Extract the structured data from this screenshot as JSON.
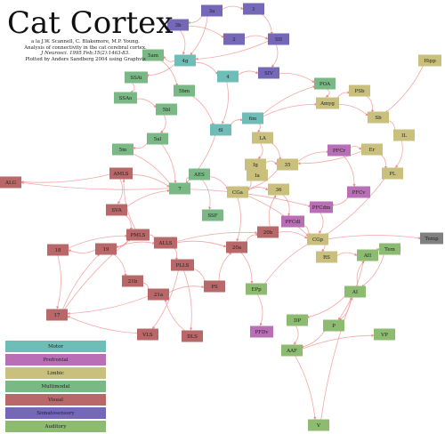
{
  "header": {
    "title": "Cat Cortex",
    "caption": [
      "a la J.W. Scannell, C. Blakemore, M.P. Young.",
      "Analysis of connectivity in the cat cerebral cortex.",
      "J Neurosci. 1995 Feb;15(2):1463-83.",
      "Plotted by Anders Sandberg 2004 using Graphviz"
    ]
  },
  "colors": {
    "Motor": "#6fbdb7",
    "Prefrontal": "#b86fb6",
    "Limbic": "#c8c07c",
    "Multimodal": "#7ab985",
    "Visual": "#b86868",
    "Somatosensory": "#7568b8",
    "Auditory": "#8dbb72",
    "Other": "#808080",
    "edge": "#f08a8a"
  },
  "legend": [
    {
      "label": "Motor",
      "category": "Motor"
    },
    {
      "label": "Prefrontal",
      "category": "Prefrontal"
    },
    {
      "label": "Limbic",
      "category": "Limbic"
    },
    {
      "label": "Multimodal",
      "category": "Multimodal"
    },
    {
      "label": "Visual",
      "category": "Visual"
    },
    {
      "label": "Somatosensory",
      "category": "Somatosensory"
    },
    {
      "label": "Auditory",
      "category": "Auditory"
    }
  ],
  "nodes": [
    {
      "id": "3a",
      "category": "Somatosensory"
    },
    {
      "id": "1",
      "category": "Somatosensory"
    },
    {
      "id": "3b",
      "category": "Somatosensory"
    },
    {
      "id": "2",
      "category": "Somatosensory"
    },
    {
      "id": "SII",
      "category": "Somatosensory"
    },
    {
      "id": "SIV",
      "category": "Somatosensory"
    },
    {
      "id": "4g",
      "category": "Motor"
    },
    {
      "id": "4",
      "category": "Motor"
    },
    {
      "id": "6l",
      "category": "Motor"
    },
    {
      "id": "6m",
      "category": "Motor"
    },
    {
      "id": "Hipp",
      "category": "Limbic"
    },
    {
      "id": "5am",
      "category": "Multimodal"
    },
    {
      "id": "SSAi",
      "category": "Multimodal"
    },
    {
      "id": "5bm",
      "category": "Multimodal"
    },
    {
      "id": "SSAo",
      "category": "Multimodal"
    },
    {
      "id": "5bl",
      "category": "Multimodal"
    },
    {
      "id": "5al",
      "category": "Multimodal"
    },
    {
      "id": "5m",
      "category": "Multimodal"
    },
    {
      "id": "POA",
      "category": "Multimodal"
    },
    {
      "id": "PSb",
      "category": "Limbic"
    },
    {
      "id": "Amyg",
      "category": "Limbic"
    },
    {
      "id": "Sb",
      "category": "Limbic"
    },
    {
      "id": "IL",
      "category": "Limbic"
    },
    {
      "id": "LA",
      "category": "Limbic"
    },
    {
      "id": "PFCr",
      "category": "Prefrontal"
    },
    {
      "id": "Er",
      "category": "Limbic"
    },
    {
      "id": "PL",
      "category": "Limbic"
    },
    {
      "id": "AMLS",
      "category": "Visual"
    },
    {
      "id": "AES",
      "category": "Multimodal"
    },
    {
      "id": "Ig",
      "category": "Limbic"
    },
    {
      "id": "35",
      "category": "Limbic"
    },
    {
      "id": "Ia",
      "category": "Limbic"
    },
    {
      "id": "ALG",
      "category": "Visual"
    },
    {
      "id": "7",
      "category": "Multimodal"
    },
    {
      "id": "CGa",
      "category": "Limbic"
    },
    {
      "id": "36",
      "category": "Limbic"
    },
    {
      "id": "PFCv",
      "category": "Prefrontal"
    },
    {
      "id": "SVA",
      "category": "Visual"
    },
    {
      "id": "SSF",
      "category": "Multimodal"
    },
    {
      "id": "PFCdm",
      "category": "Prefrontal"
    },
    {
      "id": "PFCdl",
      "category": "Prefrontal"
    },
    {
      "id": "PMLS",
      "category": "Visual"
    },
    {
      "id": "18",
      "category": "Visual"
    },
    {
      "id": "19",
      "category": "Visual"
    },
    {
      "id": "ALLS",
      "category": "Visual"
    },
    {
      "id": "20b",
      "category": "Visual"
    },
    {
      "id": "20a",
      "category": "Visual"
    },
    {
      "id": "CGp",
      "category": "Limbic"
    },
    {
      "id": "Temp",
      "category": "Other"
    },
    {
      "id": "Tem",
      "category": "Auditory"
    },
    {
      "id": "RS",
      "category": "Limbic"
    },
    {
      "id": "AII",
      "category": "Auditory"
    },
    {
      "id": "PLLS",
      "category": "Visual"
    },
    {
      "id": "21b",
      "category": "Visual"
    },
    {
      "id": "21a",
      "category": "Visual"
    },
    {
      "id": "PS",
      "category": "Visual"
    },
    {
      "id": "EPp",
      "category": "Auditory"
    },
    {
      "id": "AI",
      "category": "Auditory"
    },
    {
      "id": "17",
      "category": "Visual"
    },
    {
      "id": "DP",
      "category": "Auditory"
    },
    {
      "id": "P",
      "category": "Auditory"
    },
    {
      "id": "VLS",
      "category": "Visual"
    },
    {
      "id": "DLS",
      "category": "Visual"
    },
    {
      "id": "PFDv",
      "category": "Prefrontal"
    },
    {
      "id": "VP",
      "category": "Auditory"
    },
    {
      "id": "AAF",
      "category": "Auditory"
    },
    {
      "id": "V",
      "category": "Auditory"
    }
  ],
  "edges": [
    [
      "3a",
      "1"
    ],
    [
      "1",
      "SII"
    ],
    [
      "3b",
      "2"
    ],
    [
      "2",
      "SII"
    ],
    [
      "3a",
      "3b"
    ],
    [
      "3a",
      "4g"
    ],
    [
      "3b",
      "4g"
    ],
    [
      "4g",
      "5am"
    ],
    [
      "4g",
      "SSAi"
    ],
    [
      "4g",
      "4"
    ],
    [
      "4",
      "6l"
    ],
    [
      "4",
      "SIV"
    ],
    [
      "SII",
      "SIV"
    ],
    [
      "SIV",
      "POA"
    ],
    [
      "6l",
      "6m"
    ],
    [
      "6m",
      "POA"
    ],
    [
      "6m",
      "LA"
    ],
    [
      "5am",
      "5bm"
    ],
    [
      "SSAi",
      "SSAo"
    ],
    [
      "SSAo",
      "5bl"
    ],
    [
      "5bl",
      "5al"
    ],
    [
      "5al",
      "5m"
    ],
    [
      "5m",
      "7"
    ],
    [
      "5al",
      "7"
    ],
    [
      "7",
      "AES"
    ],
    [
      "AES",
      "CGa"
    ],
    [
      "CGa",
      "36"
    ],
    [
      "35",
      "CGa"
    ],
    [
      "Ig",
      "35"
    ],
    [
      "Ia",
      "CGa"
    ],
    [
      "35",
      "PFCr"
    ],
    [
      "PFCr",
      "Er"
    ],
    [
      "Er",
      "PL"
    ],
    [
      "Sb",
      "IL"
    ],
    [
      "PSb",
      "Sb"
    ],
    [
      "Amyg",
      "PSb"
    ],
    [
      "Amyg",
      "Sb"
    ],
    [
      "Hipp",
      "Sb"
    ],
    [
      "LA",
      "35"
    ],
    [
      "PFCv",
      "PFCdm"
    ],
    [
      "PFCdm",
      "CGp"
    ],
    [
      "PFCdl",
      "CGp"
    ],
    [
      "CGp",
      "Temp"
    ],
    [
      "CGp",
      "RS"
    ],
    [
      "RS",
      "AII"
    ],
    [
      "AII",
      "Tem"
    ],
    [
      "AI",
      "AII"
    ],
    [
      "AI",
      "P"
    ],
    [
      "AI",
      "DP"
    ],
    [
      "P",
      "AAF"
    ],
    [
      "DP",
      "AAF"
    ],
    [
      "AAF",
      "VP"
    ],
    [
      "AAF",
      "V"
    ],
    [
      "V",
      "AI"
    ],
    [
      "AMLS",
      "ALG"
    ],
    [
      "AMLS",
      "7"
    ],
    [
      "AMLS",
      "SVA"
    ],
    [
      "SVA",
      "PMLS"
    ],
    [
      "PMLS",
      "19"
    ],
    [
      "19",
      "18"
    ],
    [
      "18",
      "17"
    ],
    [
      "17",
      "19"
    ],
    [
      "19",
      "21b"
    ],
    [
      "21b",
      "21a"
    ],
    [
      "21a",
      "17"
    ],
    [
      "PMLS",
      "ALLS"
    ],
    [
      "ALLS",
      "20a"
    ],
    [
      "20a",
      "20b"
    ],
    [
      "20b",
      "CGp"
    ],
    [
      "ALLS",
      "PLLS"
    ],
    [
      "PLLS",
      "PS"
    ],
    [
      "PLLS",
      "DLS"
    ],
    [
      "PLLS",
      "VLS"
    ],
    [
      "PS",
      "20a"
    ],
    [
      "20a",
      "EPp"
    ],
    [
      "EPp",
      "PFDv"
    ],
    [
      "EPp",
      "CGp"
    ],
    [
      "19",
      "ALLS"
    ],
    [
      "17",
      "PMLS"
    ],
    [
      "18",
      "PMLS"
    ],
    [
      "21a",
      "PS"
    ],
    [
      "7",
      "ALG"
    ],
    [
      "6l",
      "7"
    ],
    [
      "SII",
      "4g"
    ],
    [
      "5bm",
      "6l"
    ],
    [
      "AES",
      "SSF"
    ],
    [
      "36",
      "PFCdl"
    ],
    [
      "7",
      "PFCdm"
    ],
    [
      "LA",
      "Ig"
    ],
    [
      "POA",
      "Amyg"
    ],
    [
      "IL",
      "PL"
    ],
    [
      "PFCr",
      "PFCv"
    ],
    [
      "Er",
      "35"
    ],
    [
      "Tem",
      "AI"
    ],
    [
      "AII",
      "P"
    ],
    [
      "20b",
      "36"
    ],
    [
      "CGa",
      "20a"
    ],
    [
      "CGa",
      "CGp"
    ],
    [
      "PL",
      "CGp"
    ],
    [
      "6m",
      "Amyg"
    ],
    [
      "SVA",
      "7"
    ],
    [
      "PMLS",
      "AMLS"
    ],
    [
      "ALLS",
      "20b"
    ],
    [
      "VLS",
      "17"
    ],
    [
      "DLS",
      "21a"
    ]
  ]
}
